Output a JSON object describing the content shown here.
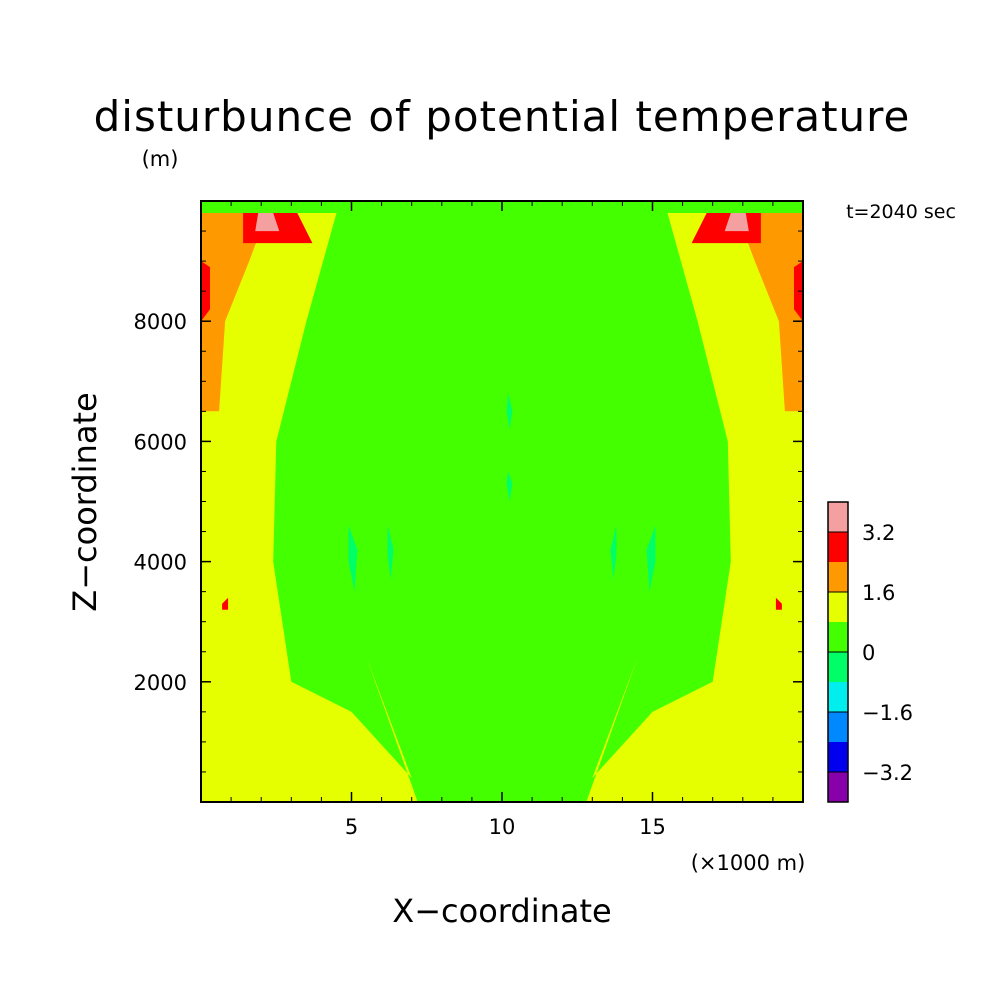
{
  "chart_data": {
    "type": "heatmap",
    "title": "disturbunce of potential temperature",
    "title_unit": "(m)",
    "time_label": "t=2040 sec",
    "xlabel": "X−coordinate",
    "ylabel": "Z−coordinate",
    "x_unit_note": "(×1000 m)",
    "xlim": [
      0,
      20
    ],
    "ylim": [
      0,
      10000
    ],
    "x_ticks": [
      {
        "value": 5,
        "label": "5"
      },
      {
        "value": 10,
        "label": "10"
      },
      {
        "value": 15,
        "label": "15"
      }
    ],
    "y_ticks": [
      {
        "value": 2000,
        "label": "2000"
      },
      {
        "value": 4000,
        "label": "4000"
      },
      {
        "value": 6000,
        "label": "6000"
      },
      {
        "value": 8000,
        "label": "8000"
      }
    ],
    "colorbar": {
      "levels": [
        {
          "color": "#f4a0a0"
        },
        {
          "color": "#ff0000"
        },
        {
          "color": "#ff9900"
        },
        {
          "color": "#e6ff00"
        },
        {
          "color": "#44ff00"
        },
        {
          "color": "#00ff66"
        },
        {
          "color": "#00eeee"
        },
        {
          "color": "#0088ff"
        },
        {
          "color": "#0000ee"
        },
        {
          "color": "#8800aa"
        }
      ],
      "labels": [
        {
          "label": "3.2",
          "value": 3.2
        },
        {
          "label": "1.6",
          "value": 1.6
        },
        {
          "label": "0",
          "value": 0
        },
        {
          "label": "−1.6",
          "value": -1.6
        },
        {
          "label": "−3.2",
          "value": -3.2
        }
      ],
      "range": [
        -4.0,
        4.0
      ]
    },
    "field": {
      "background": "#44ff00",
      "regions": [
        {
          "level": "1.6 to 2.4",
          "color": "#e6ff00",
          "points": [
            [
              0,
              0
            ],
            [
              20,
              0
            ],
            [
              20,
              9.8
            ],
            [
              15.5,
              9.8
            ],
            [
              16.5,
              8
            ],
            [
              17.5,
              6
            ],
            [
              17.6,
              4
            ],
            [
              17,
              2
            ],
            [
              15,
              1.5
            ],
            [
              13,
              0.4
            ],
            [
              14.5,
              2.4
            ],
            [
              12.8,
              0
            ],
            [
              7.2,
              0
            ],
            [
              5.5,
              2.4
            ],
            [
              7,
              0.4
            ],
            [
              5,
              1.5
            ],
            [
              3,
              2
            ],
            [
              2.4,
              4
            ],
            [
              2.5,
              6
            ],
            [
              3.5,
              8
            ],
            [
              4.5,
              9.8
            ],
            [
              0,
              9.8
            ]
          ]
        },
        {
          "level": "2.4 to 3.2",
          "color": "#ff9900",
          "points": [
            [
              0,
              6.5
            ],
            [
              0.6,
              6.5
            ],
            [
              0.8,
              8
            ],
            [
              1.6,
              9
            ],
            [
              2.2,
              9.8
            ],
            [
              0,
              9.8
            ]
          ]
        },
        {
          "level": "2.4 to 3.2",
          "color": "#ff9900",
          "points": [
            [
              20,
              6.5
            ],
            [
              19.4,
              6.5
            ],
            [
              19.2,
              8
            ],
            [
              18.4,
              9
            ],
            [
              17.8,
              9.8
            ],
            [
              20,
              9.8
            ]
          ]
        },
        {
          "level": "3.2 to 4.0",
          "color": "#ff0000",
          "points": [
            [
              0,
              8
            ],
            [
              0.3,
              8.2
            ],
            [
              0.3,
              8.9
            ],
            [
              0,
              9
            ]
          ]
        },
        {
          "level": "3.2 to 4.0",
          "color": "#ff0000",
          "points": [
            [
              20,
              8
            ],
            [
              19.7,
              8.2
            ],
            [
              19.7,
              8.9
            ],
            [
              20,
              9
            ]
          ]
        },
        {
          "level": "3.2 to 4.0",
          "color": "#ff0000",
          "points": [
            [
              1.4,
              9.3
            ],
            [
              3.7,
              9.3
            ],
            [
              3.2,
              9.8
            ],
            [
              1.4,
              9.8
            ]
          ]
        },
        {
          "level": "3.2 to 4.0",
          "color": "#ff0000",
          "points": [
            [
              18.6,
              9.3
            ],
            [
              16.3,
              9.3
            ],
            [
              16.8,
              9.8
            ],
            [
              18.6,
              9.8
            ]
          ]
        },
        {
          "level": "3.2 to 4.0",
          "color": "#ff0000",
          "points": [
            [
              0.7,
              3.3
            ],
            [
              0.9,
              3.4
            ],
            [
              0.9,
              3.2
            ],
            [
              0.7,
              3.2
            ]
          ]
        },
        {
          "level": "3.2 to 4.0",
          "color": "#ff0000",
          "points": [
            [
              19.3,
              3.3
            ],
            [
              19.1,
              3.4
            ],
            [
              19.1,
              3.2
            ],
            [
              19.3,
              3.2
            ]
          ]
        },
        {
          "level": ">4.0",
          "color": "#f4a0a0",
          "points": [
            [
              1.8,
              9.5
            ],
            [
              2.6,
              9.5
            ],
            [
              2.4,
              9.8
            ],
            [
              1.9,
              9.8
            ]
          ]
        },
        {
          "level": ">4.0",
          "color": "#f4a0a0",
          "points": [
            [
              18.2,
              9.5
            ],
            [
              17.4,
              9.5
            ],
            [
              17.6,
              9.8
            ],
            [
              18.1,
              9.8
            ]
          ]
        },
        {
          "level": "-0.8 to 0",
          "color": "#00ff66",
          "points": [
            [
              4.9,
              4.6
            ],
            [
              5.2,
              4.2
            ],
            [
              5.1,
              3.5
            ],
            [
              4.9,
              4.0
            ]
          ]
        },
        {
          "level": "-0.8 to 0",
          "color": "#00ff66",
          "points": [
            [
              15.1,
              4.6
            ],
            [
              14.8,
              4.2
            ],
            [
              14.9,
              3.5
            ],
            [
              15.1,
              4.0
            ]
          ]
        },
        {
          "level": "-0.8 to 0",
          "color": "#00ff66",
          "points": [
            [
              6.2,
              4.6
            ],
            [
              6.4,
              4.2
            ],
            [
              6.3,
              3.7
            ],
            [
              6.2,
              4.1
            ]
          ]
        },
        {
          "level": "-0.8 to 0",
          "color": "#00ff66",
          "points": [
            [
              13.8,
              4.6
            ],
            [
              13.6,
              4.2
            ],
            [
              13.7,
              3.7
            ],
            [
              13.8,
              4.1
            ]
          ]
        },
        {
          "level": "-0.8 to 0",
          "color": "#00ff66",
          "points": [
            [
              10.2,
              6.8
            ],
            [
              10.35,
              6.5
            ],
            [
              10.25,
              6.2
            ],
            [
              10.15,
              6.5
            ]
          ]
        },
        {
          "level": "-0.8 to 0",
          "color": "#00ff66",
          "points": [
            [
              10.2,
              5.5
            ],
            [
              10.35,
              5.3
            ],
            [
              10.25,
              5.0
            ],
            [
              10.15,
              5.3
            ]
          ]
        }
      ]
    }
  }
}
